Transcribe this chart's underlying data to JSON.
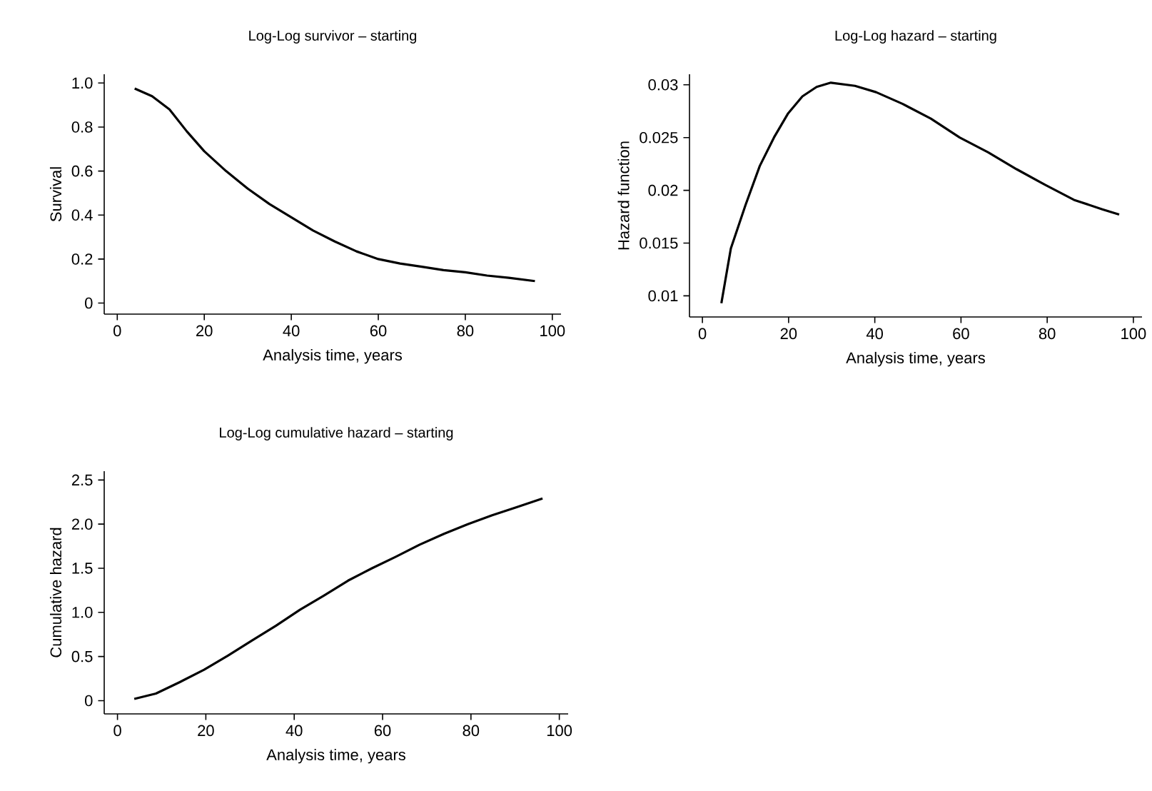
{
  "chart_data": [
    {
      "type": "line",
      "title": "Log-Log survivor – starting",
      "xlabel": "Analysis time, years",
      "ylabel": "Survival",
      "color": "#000000",
      "xlim": [
        -3,
        102
      ],
      "ylim": [
        -0.05,
        1.04
      ],
      "xticks": [
        0,
        20,
        40,
        60,
        80,
        100
      ],
      "yticks": [
        0,
        0.2,
        0.4,
        0.6,
        {
          "value": 0.8,
          "label": "0.8"
        },
        {
          "value": 1,
          "label": "1.0"
        }
      ],
      "x": [
        4,
        8,
        12,
        16,
        20,
        25,
        30,
        35,
        40,
        45,
        50,
        55,
        60,
        65,
        70,
        75,
        80,
        85,
        90,
        96
      ],
      "values": [
        0.975,
        0.94,
        0.88,
        0.78,
        0.69,
        0.6,
        0.52,
        0.45,
        0.39,
        0.33,
        0.28,
        0.235,
        0.2,
        0.18,
        0.165,
        0.15,
        0.14,
        0.125,
        0.115,
        0.1
      ]
    },
    {
      "type": "line",
      "title": "Log-Log hazard – starting",
      "xlabel": "Analysis time, years",
      "ylabel": "Hazard function",
      "color": "#000000",
      "xlim": [
        -3,
        102
      ],
      "ylim": [
        0.008,
        0.031
      ],
      "xticks": [
        0,
        20,
        40,
        60,
        80,
        100
      ],
      "yticks": [
        0.01,
        0.015,
        0.02,
        0.025,
        0.03
      ],
      "x": [
        4.4,
        6.6,
        10,
        13.3,
        16.6,
        19.9,
        23.2,
        26.5,
        29.8,
        35.4,
        40.3,
        46.4,
        53,
        59.7,
        66.3,
        72.9,
        79.6,
        86.2,
        92.8,
        96.7
      ],
      "values": [
        0.0093,
        0.0145,
        0.0186,
        0.0223,
        0.025,
        0.0273,
        0.0289,
        0.0298,
        0.0302,
        0.0299,
        0.0293,
        0.0282,
        0.0268,
        0.025,
        0.0236,
        0.022,
        0.0205,
        0.0191,
        0.0182,
        0.0177
      ]
    },
    {
      "type": "line",
      "title": "Log-Log cumulative hazard – starting",
      "xlabel": "Analysis time, years",
      "ylabel": "Cumulative hazard",
      "color": "#000000",
      "xlim": [
        -3,
        102
      ],
      "ylim": [
        -0.15,
        2.6
      ],
      "xticks": [
        0,
        20,
        40,
        60,
        80,
        100
      ],
      "yticks": [
        0,
        0.5,
        {
          "value": 1,
          "label": "1.0"
        },
        1.5,
        {
          "value": 2,
          "label": "2.0"
        },
        2.5
      ],
      "x": [
        3.8,
        8.7,
        14.1,
        19.6,
        25,
        30.4,
        35.9,
        41.3,
        46.7,
        52.2,
        57.6,
        63,
        68.5,
        73.9,
        79.3,
        84.8,
        90.2,
        96.2
      ],
      "values": [
        0.02,
        0.08,
        0.21,
        0.35,
        0.51,
        0.68,
        0.85,
        1.03,
        1.19,
        1.36,
        1.5,
        1.63,
        1.77,
        1.89,
        2.0,
        2.1,
        2.19,
        2.29
      ]
    }
  ]
}
